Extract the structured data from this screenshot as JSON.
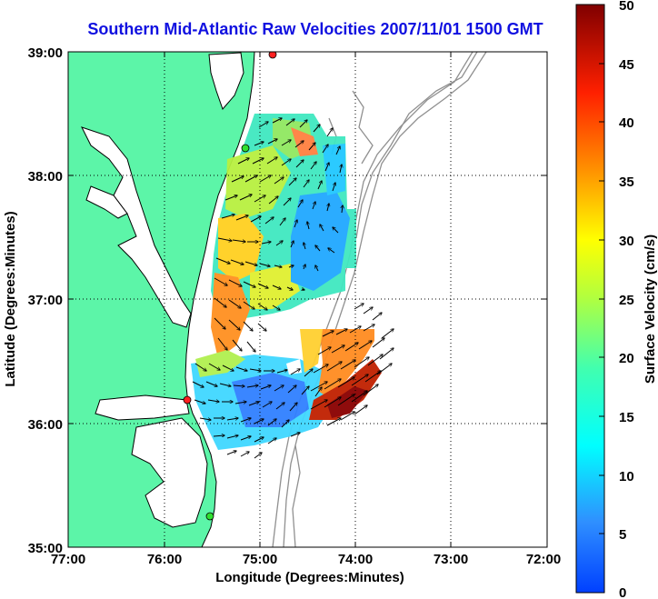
{
  "title": "Southern Mid-Atlantic Raw Velocities 2007/11/01 1500 GMT",
  "x_axis": {
    "label": "Longitude (Degrees:Minutes)",
    "ticks": [
      "77:00",
      "76:00",
      "75:00",
      "74:00",
      "73:00",
      "72:00"
    ]
  },
  "y_axis": {
    "label": "Latitude (Degrees:Minutes)",
    "ticks": [
      "39:00",
      "38:00",
      "37:00",
      "36:00",
      "35:00"
    ]
  },
  "colorbar": {
    "label": "Surface Velocity (cm/s)",
    "ticks": [
      "50",
      "45",
      "40",
      "35",
      "30",
      "25",
      "20",
      "15",
      "10",
      "5",
      "0"
    ],
    "range": [
      0,
      50
    ],
    "colormap": "jet"
  },
  "colors": {
    "land": "#5cf5a8",
    "coastline": "#000000",
    "bathymetry": "#909090",
    "title": "#1010e0",
    "gridlines": "#000000"
  },
  "stations": [
    {
      "name": "station-north",
      "color": "#ff2020"
    },
    {
      "name": "station-mid",
      "color": "#30e030"
    },
    {
      "name": "station-south-red",
      "color": "#ff2020"
    },
    {
      "name": "station-south-green",
      "color": "#30e030"
    }
  ]
}
